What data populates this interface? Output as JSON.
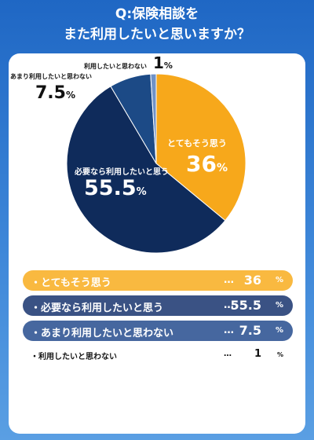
{
  "title": {
    "line1": "Q:保険相談を",
    "line2": "また利用したいと思いますか？"
  },
  "colors": {
    "background": "#2b74cd",
    "accent": "#f7a81b"
  },
  "chart_data": {
    "type": "pie",
    "title": "Q:保険相談をまた利用したいと思いますか？",
    "slices": [
      {
        "label": "とてもそう思う",
        "value": 36,
        "display": "36",
        "color": "#f7a81b",
        "row_color": "#f9b940",
        "text_color": "#ffffff"
      },
      {
        "label": "必要なら利用したいと思う",
        "value": 55.5,
        "display": "55.5",
        "color": "#0f2b5b",
        "row_color": "#3a5284",
        "text_color": "#ffffff"
      },
      {
        "label": "あまり利用したいと思わない",
        "value": 7.5,
        "display": "7.5",
        "color": "#1c4a86",
        "row_color": "#46679f",
        "text_color": "#ffffff"
      },
      {
        "label": "利用したいと思わない",
        "value": 1,
        "display": "1",
        "color": "#6f92c7",
        "row_color": "#ffffff",
        "text_color": "#111111"
      }
    ],
    "unit": "%",
    "dots": "…",
    "bullet": "・"
  }
}
